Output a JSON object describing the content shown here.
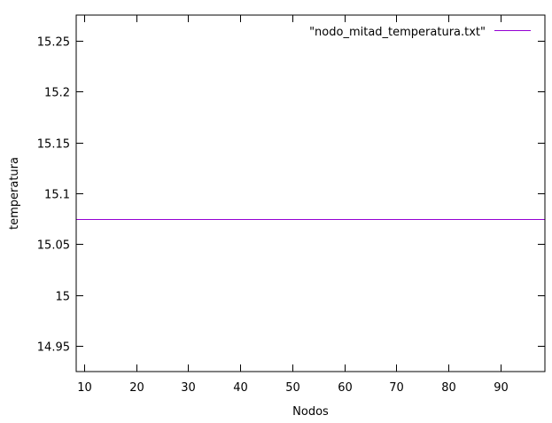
{
  "chart_data": {
    "type": "line",
    "title": "",
    "xlabel": "Nodos",
    "ylabel": "temperatura",
    "xlim": [
      8.5,
      98.5
    ],
    "ylim": [
      14.925,
      15.275
    ],
    "xticks": [
      10,
      20,
      30,
      40,
      50,
      60,
      70,
      80,
      90
    ],
    "xtick_labels": [
      "10",
      "20",
      "30",
      "40",
      "50",
      "60",
      "70",
      "80",
      "90"
    ],
    "yticks": [
      14.95,
      15,
      15.05,
      15.1,
      15.15,
      15.2,
      15.25
    ],
    "ytick_labels": [
      "14.95",
      "15",
      "15.05",
      "15.1",
      "15.15",
      "15.2",
      "15.25"
    ],
    "grid": false,
    "legend_position": "top-right",
    "series": [
      {
        "name": "\"nodo_mitad_temperatura.txt\"",
        "color": "#9400d3",
        "x": [
          8.5,
          98.5
        ],
        "y": [
          15.075,
          15.075
        ]
      }
    ]
  }
}
